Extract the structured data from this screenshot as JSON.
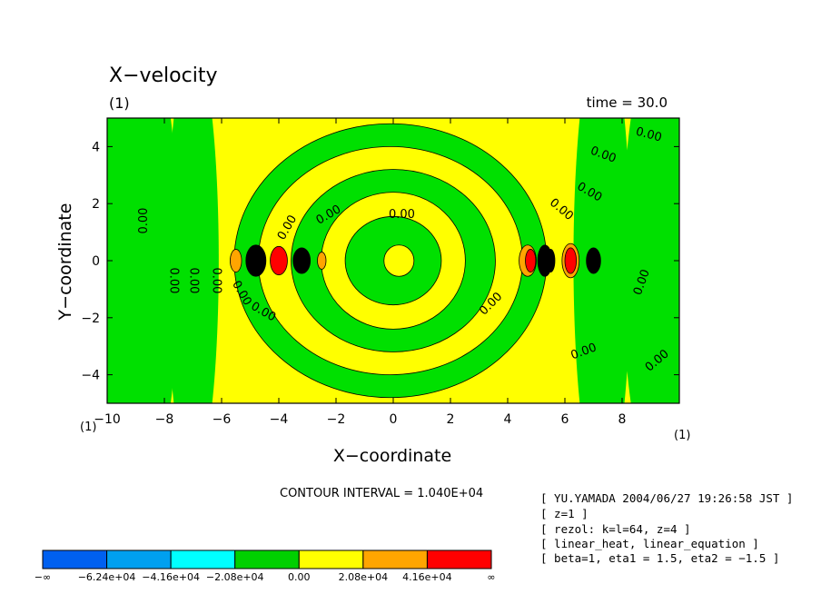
{
  "chart_data": {
    "type": "heatmap",
    "title": "X−velocity",
    "subtitle": "(1)",
    "time_label": "time = 30.0",
    "xlabel": "X−coordinate",
    "ylabel": "Y−coordinate",
    "x_unit": "(1)",
    "y_unit": "(1)",
    "xlim": [
      -10,
      10
    ],
    "ylim": [
      -5,
      5
    ],
    "x_ticks": [
      -10,
      -8,
      -6,
      -4,
      -2,
      0,
      2,
      4,
      6,
      8
    ],
    "y_ticks": [
      -4,
      -2,
      0,
      2,
      4
    ],
    "contour_interval": "CONTOUR INTERVAL = 1.040E+04",
    "contour_zero_label": "0.00",
    "palette": {
      "level_-3": "#0060f0",
      "level_-2": "#00a0f0",
      "level_-1": "#00ffff",
      "level_0n": "#00e000",
      "level_0p": "#ffff00",
      "level_1": "#ffa500",
      "level_2": "#ff0000"
    },
    "colorbar": {
      "colors": [
        "#0060f0",
        "#00a0f0",
        "#00ffff",
        "#00d000",
        "#ffff00",
        "#ffa500",
        "#ff0000"
      ],
      "labels": [
        "−∞",
        "−6.24e+04",
        "−4.16e+04",
        "−2.08e+04",
        "0.00",
        "2.08e+04",
        "4.16e+04",
        "∞"
      ]
    },
    "notes": [
      "[ YU.YAMADA 2004/06/27 19:26:58 JST ]",
      "[ z=1 ]",
      "[ rezol: k=l=64, z=4 ]",
      "[ linear_heat, linear_equation ]",
      "[ beta=1, eta1 = 1.5, eta2 = −1.5 ]"
    ]
  }
}
